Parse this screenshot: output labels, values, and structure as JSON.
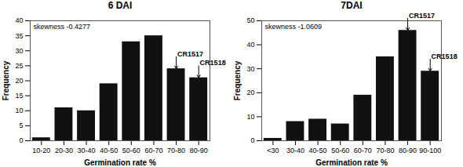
{
  "chart_data": [
    {
      "type": "bar",
      "title": "6 DAI",
      "categories": [
        "10-20",
        "20-30",
        "30-40",
        "40-50",
        "50-60",
        "60-70",
        "70-80",
        "80-90"
      ],
      "values": [
        1,
        11,
        10,
        19,
        33,
        35,
        24,
        21
      ],
      "color": "#111111",
      "ylim": [
        0,
        40
      ],
      "yticks": [
        0,
        5,
        10,
        15,
        20,
        25,
        30,
        35,
        40
      ],
      "xlabel": "Germination rate %",
      "ylabel": "Frequency",
      "grid": false,
      "annotations": [
        {
          "text": "skewness -0.4277"
        },
        {
          "text": "CR1517",
          "x": "70-80",
          "y": 24
        },
        {
          "text": "CR1518",
          "x": "80-90",
          "y": 21
        }
      ]
    },
    {
      "type": "bar",
      "title": "7DAI",
      "categories": [
        "<30",
        "30-40",
        "40-50",
        "50-60",
        "60-70",
        "70-80",
        "80-90",
        "90-100"
      ],
      "values": [
        1,
        8,
        9,
        7,
        19,
        35,
        46,
        29
      ],
      "color": "#111111",
      "ylim": [
        0,
        50
      ],
      "yticks": [
        0,
        10,
        20,
        30,
        40,
        50
      ],
      "xlabel": "Germination rate %",
      "ylabel": "Frequency",
      "grid": false,
      "annotations": [
        {
          "text": "skewness -1.0609"
        },
        {
          "text": "CR1517",
          "x": "80-90",
          "y": 46
        },
        {
          "text": "CR1518",
          "x": "90-100",
          "y": 29
        }
      ]
    }
  ]
}
